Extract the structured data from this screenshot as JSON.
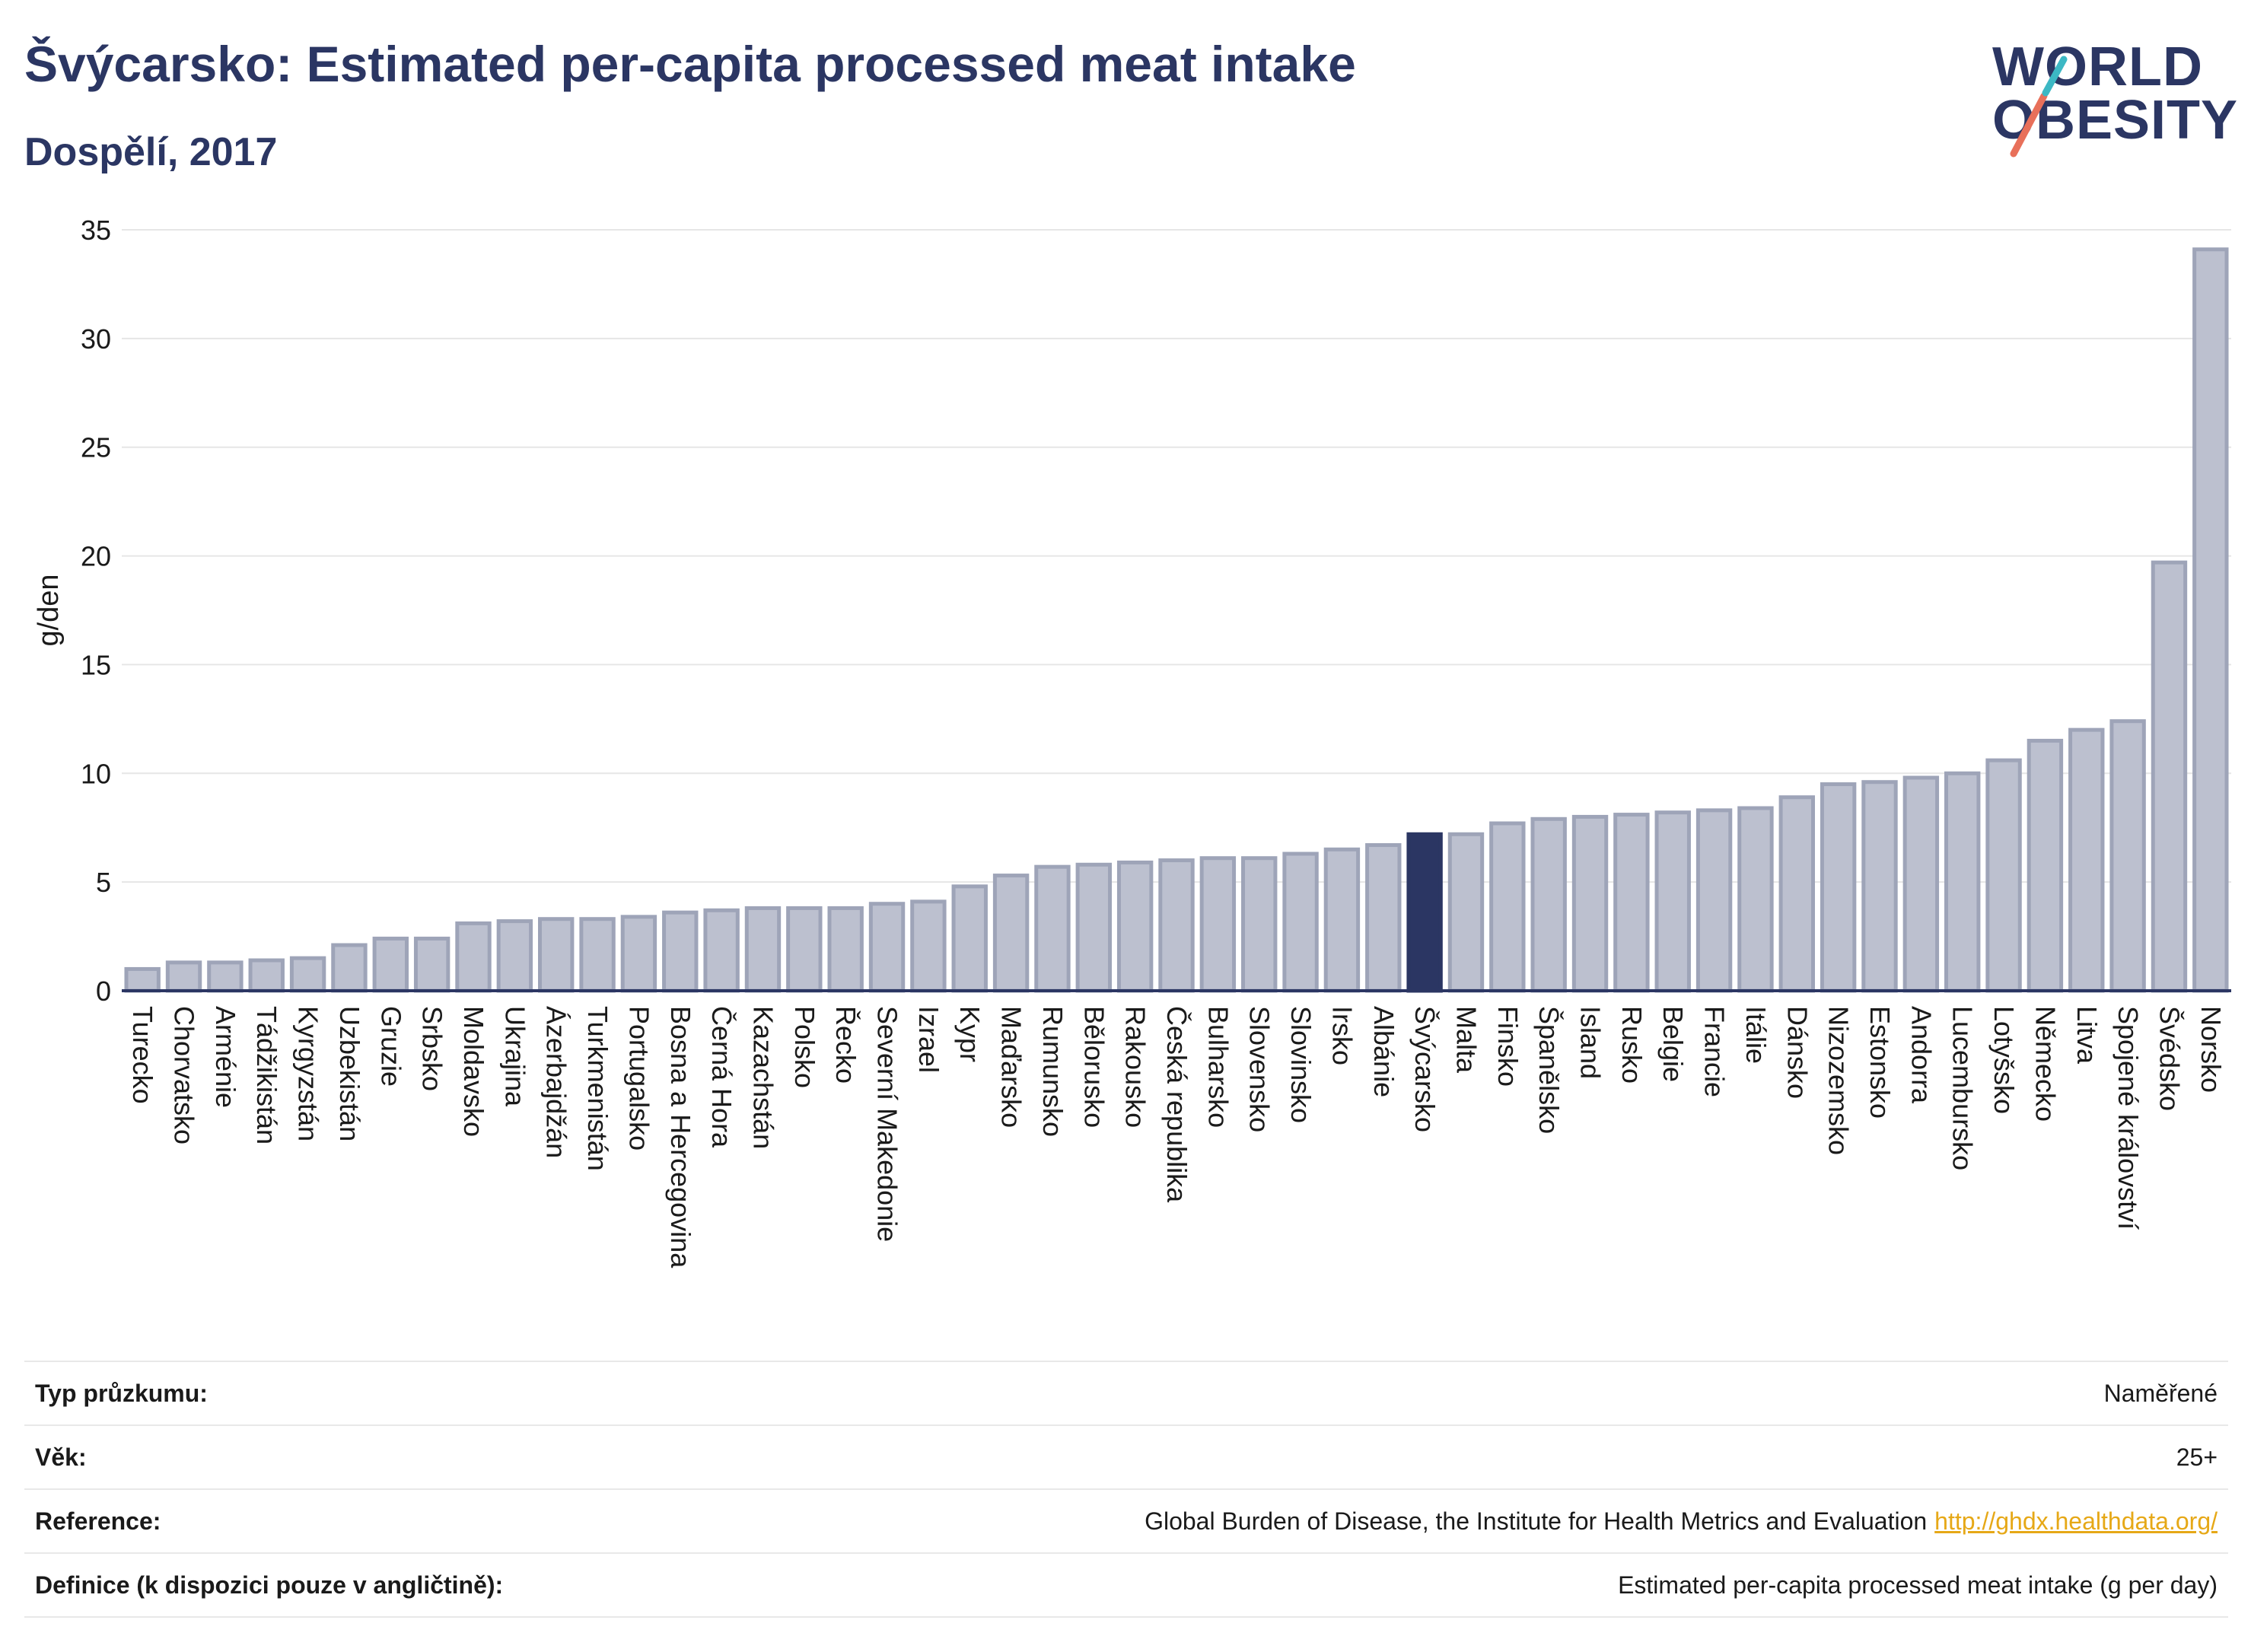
{
  "header": {
    "title": "Švýcarsko: Estimated per-capita processed meat intake",
    "subtitle": "Dospělí, 2017"
  },
  "logo": {
    "line1": "WORLD",
    "line2": "OBESITY"
  },
  "colors": {
    "bar": "#bcc0cf",
    "bar_border": "#9ea4b8",
    "highlight": "#2b3663",
    "grid": "#e6e6e6",
    "axis": "#2b3663"
  },
  "chart_data": {
    "type": "bar",
    "ylabel": "g/den",
    "ylim": [
      0,
      35
    ],
    "yticks": [
      0,
      5,
      10,
      15,
      20,
      25,
      30,
      35
    ],
    "highlight": "Švýcarsko",
    "categories": [
      "Turecko",
      "Chorvatsko",
      "Arménie",
      "Tádžikistán",
      "Kyrgyzstán",
      "Uzbekistán",
      "Gruzie",
      "Srbsko",
      "Moldavsko",
      "Ukrajina",
      "Ázerbajdžán",
      "Turkmenistán",
      "Portugalsko",
      "Bosna a Hercegovina",
      "Černá Hora",
      "Kazachstán",
      "Polsko",
      "Řecko",
      "Severní Makedonie",
      "Izrael",
      "Kypr",
      "Maďarsko",
      "Rumunsko",
      "Bělorusko",
      "Rakousko",
      "Česká republika",
      "Bulharsko",
      "Slovensko",
      "Slovinsko",
      "Irsko",
      "Albánie",
      "Švýcarsko",
      "Malta",
      "Finsko",
      "Španělsko",
      "Island",
      "Rusko",
      "Belgie",
      "Francie",
      "Itálie",
      "Dánsko",
      "Nizozemsko",
      "Estonsko",
      "Andorra",
      "Lucembursko",
      "Lotyšsko",
      "Německo",
      "Litva",
      "Spojené království",
      "Švédsko",
      "Norsko"
    ],
    "values": [
      1.0,
      1.3,
      1.3,
      1.4,
      1.5,
      2.1,
      2.4,
      2.4,
      3.1,
      3.2,
      3.3,
      3.3,
      3.4,
      3.6,
      3.7,
      3.8,
      3.8,
      3.8,
      4.0,
      4.1,
      4.8,
      5.3,
      5.7,
      5.8,
      5.9,
      6.0,
      6.1,
      6.1,
      6.3,
      6.5,
      6.7,
      7.2,
      7.2,
      7.7,
      7.9,
      8.0,
      8.1,
      8.2,
      8.3,
      8.4,
      8.9,
      9.5,
      9.6,
      9.8,
      10.0,
      10.6,
      11.5,
      12.0,
      12.4,
      19.7,
      34.1
    ]
  },
  "footer": {
    "rows": [
      {
        "key": "Typ průzkumu:",
        "value": "Naměřené"
      },
      {
        "key": "Věk:",
        "value": "25+"
      },
      {
        "key": "Reference:",
        "value": "Global Burden of Disease, the Institute for Health Metrics and Evaluation",
        "link": "http://ghdx.healthdata.org/"
      },
      {
        "key": "Definice (k dispozici pouze v angličtině):",
        "value": "Estimated per-capita processed meat intake (g per day)"
      }
    ]
  }
}
